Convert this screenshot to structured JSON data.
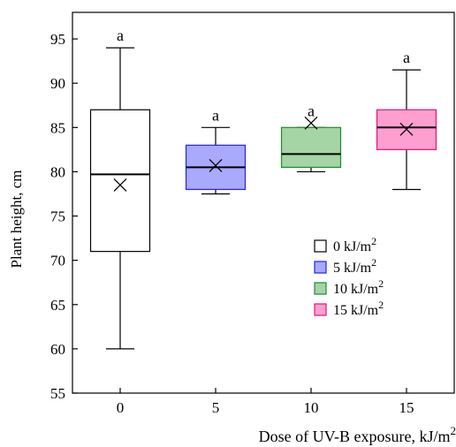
{
  "chart_data": {
    "type": "box",
    "xlabel": "Dose of UV-B exposure, kJ/m",
    "xlabel_superscript": "2",
    "ylabel": "Plant height, cm",
    "ylim": [
      55,
      98
    ],
    "yticks": [
      55,
      60,
      65,
      70,
      75,
      80,
      85,
      90,
      95
    ],
    "categories": [
      "0",
      "5",
      "10",
      "15"
    ],
    "grid": false,
    "legend_position": "inside-lower-right",
    "boxes": [
      {
        "category": "0",
        "legend_label": "0 kJ/m",
        "legend_superscript": "2",
        "min": 60,
        "q1": 71,
        "median": 79.7,
        "q3": 87,
        "max": 94,
        "mean": 78.5,
        "significance": "a",
        "fill": "#ffffff",
        "stroke": "#000000"
      },
      {
        "category": "5",
        "legend_label": "5 kJ/m",
        "legend_superscript": "2",
        "min": 77.5,
        "q1": 78,
        "median": 80.5,
        "q3": 83,
        "max": 85,
        "mean": 80.7,
        "significance": "a",
        "fill": "#a9a9ff",
        "stroke": "#2222ee"
      },
      {
        "category": "10",
        "legend_label": "10 kJ/m",
        "legend_superscript": "2",
        "min": 80,
        "q1": 80.5,
        "median": 82,
        "q3": 85,
        "max": 85,
        "mean": 85.5,
        "significance": "a",
        "fill": "#a5d4a5",
        "stroke": "#1e8a2e"
      },
      {
        "category": "15",
        "legend_label": "15 kJ/m",
        "legend_superscript": "2",
        "min": 78,
        "q1": 82.5,
        "median": 85,
        "q3": 87,
        "max": 91.5,
        "mean": 84.8,
        "significance": "a",
        "fill": "#ff9fd0",
        "stroke": "#e0147a"
      }
    ]
  }
}
